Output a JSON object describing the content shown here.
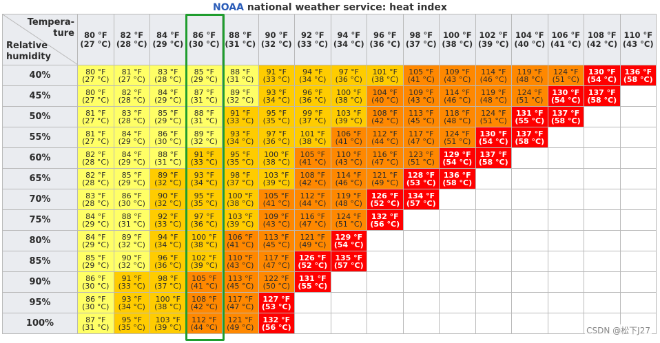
{
  "title_brand": "NOAA",
  "title_rest": " national weather service: heat index",
  "corner_top": "Tempera-\nture",
  "corner_bottom": "Relative\nhumidity",
  "watermark": "CSDN @松下J27",
  "highlight_color": "#1f9d2e",
  "colors": {
    "caution": "#ffff66",
    "extreme_caution": "#ffcc00",
    "danger": "#ff8800",
    "extreme_danger": "#ff0000"
  },
  "temperatures": [
    [
      "80 °F",
      "(27 °C)"
    ],
    [
      "82 °F",
      "(28 °C)"
    ],
    [
      "84 °F",
      "(29 °C)"
    ],
    [
      "86 °F",
      "(30 °C)"
    ],
    [
      "88 °F",
      "(31 °C)"
    ],
    [
      "90 °F",
      "(32 °C)"
    ],
    [
      "92 °F",
      "(33 °C)"
    ],
    [
      "94 °F",
      "(34 °C)"
    ],
    [
      "96 °F",
      "(36 °C)"
    ],
    [
      "98 °F",
      "(37 °C)"
    ],
    [
      "100 °F",
      "(38 °C)"
    ],
    [
      "102 °F",
      "(39 °C)"
    ],
    [
      "104 °F",
      "(40 °C)"
    ],
    [
      "106 °F",
      "(41 °C)"
    ],
    [
      "108 °F",
      "(42 °C)"
    ],
    [
      "110 °F",
      "(43 °C)"
    ]
  ],
  "rows": [
    {
      "humidity": "40%",
      "cells": [
        [
          "y",
          "80 °F",
          "(27 °C)"
        ],
        [
          "y",
          "81 °F",
          "(27 °C)"
        ],
        [
          "y",
          "83 °F",
          "(28 °C)"
        ],
        [
          "y",
          "85 °F",
          "(29 °C)"
        ],
        [
          "y",
          "88 °F",
          "(31 °C)"
        ],
        [
          "g",
          "91 °F",
          "(33 °C)"
        ],
        [
          "g",
          "94 °F",
          "(34 °C)"
        ],
        [
          "g",
          "97 °F",
          "(36 °C)"
        ],
        [
          "g",
          "101 °F",
          "(38 °C)"
        ],
        [
          "o",
          "105 °F",
          "(41 °C)"
        ],
        [
          "o",
          "109 °F",
          "(43 °C)"
        ],
        [
          "o",
          "114 °F",
          "(46 °C)"
        ],
        [
          "o",
          "119 °F",
          "(48 °C)"
        ],
        [
          "o",
          "124 °F",
          "(51 °C)"
        ],
        [
          "r",
          "130 °F",
          "(54 °C)"
        ],
        [
          "r",
          "136 °F",
          "(58 °C)"
        ]
      ]
    },
    {
      "humidity": "45%",
      "cells": [
        [
          "y",
          "80 °F",
          "(27 °C)"
        ],
        [
          "y",
          "82 °F",
          "(28 °C)"
        ],
        [
          "y",
          "84 °F",
          "(29 °C)"
        ],
        [
          "y",
          "87 °F",
          "(31 °C)"
        ],
        [
          "y",
          "89 °F",
          "(32 °C)"
        ],
        [
          "g",
          "93 °F",
          "(34 °C)"
        ],
        [
          "g",
          "96 °F",
          "(36 °C)"
        ],
        [
          "g",
          "100 °F",
          "(38 °C)"
        ],
        [
          "o",
          "104 °F",
          "(40 °C)"
        ],
        [
          "o",
          "109 °F",
          "(43 °C)"
        ],
        [
          "o",
          "114 °F",
          "(46 °C)"
        ],
        [
          "o",
          "119 °F",
          "(48 °C)"
        ],
        [
          "o",
          "124 °F",
          "(51 °C)"
        ],
        [
          "r",
          "130 °F",
          "(54 °C)"
        ],
        [
          "r",
          "137 °F",
          "(58 °C)"
        ],
        [
          "e",
          "",
          ""
        ]
      ]
    },
    {
      "humidity": "50%",
      "cells": [
        [
          "y",
          "81 °F",
          "(27 °C)"
        ],
        [
          "y",
          "83 °F",
          "(28 °C)"
        ],
        [
          "y",
          "85 °F",
          "(29 °C)"
        ],
        [
          "y",
          "88 °F",
          "(31 °C)"
        ],
        [
          "g",
          "91 °F",
          "(33 °C)"
        ],
        [
          "g",
          "95 °F",
          "(35 °C)"
        ],
        [
          "g",
          "99 °F",
          "(37 °C)"
        ],
        [
          "g",
          "103 °F",
          "(39 °C)"
        ],
        [
          "o",
          "108 °F",
          "(42 °C)"
        ],
        [
          "o",
          "113 °F",
          "(45 °C)"
        ],
        [
          "o",
          "118 °F",
          "(48 °C)"
        ],
        [
          "o",
          "124 °F",
          "(51 °C)"
        ],
        [
          "r",
          "131 °F",
          "(55 °C)"
        ],
        [
          "r",
          "137 °F",
          "(58 °C)"
        ],
        [
          "e",
          "",
          ""
        ],
        [
          "e",
          "",
          ""
        ]
      ]
    },
    {
      "humidity": "55%",
      "cells": [
        [
          "y",
          "81 °F",
          "(27 °C)"
        ],
        [
          "y",
          "84 °F",
          "(29 °C)"
        ],
        [
          "y",
          "86 °F",
          "(30 °C)"
        ],
        [
          "y",
          "89 °F",
          "(32 °C)"
        ],
        [
          "g",
          "93 °F",
          "(34 °C)"
        ],
        [
          "g",
          "97 °F",
          "(36 °C)"
        ],
        [
          "g",
          "101 °F",
          "(38 °C)"
        ],
        [
          "o",
          "106 °F",
          "(41 °C)"
        ],
        [
          "o",
          "112 °F",
          "(44 °C)"
        ],
        [
          "o",
          "117 °F",
          "(47 °C)"
        ],
        [
          "o",
          "124 °F",
          "(51 °C)"
        ],
        [
          "r",
          "130 °F",
          "(54 °C)"
        ],
        [
          "r",
          "137 °F",
          "(58 °C)"
        ],
        [
          "e",
          "",
          ""
        ],
        [
          "e",
          "",
          ""
        ],
        [
          "e",
          "",
          ""
        ]
      ]
    },
    {
      "humidity": "60%",
      "cells": [
        [
          "y",
          "82 °F",
          "(28 °C)"
        ],
        [
          "y",
          "84 °F",
          "(29 °C)"
        ],
        [
          "y",
          "88 °F",
          "(31 °C)"
        ],
        [
          "g",
          "91 °F",
          "(33 °C)"
        ],
        [
          "g",
          "95 °F",
          "(35 °C)"
        ],
        [
          "g",
          "100 °F",
          "(38 °C)"
        ],
        [
          "o",
          "105 °F",
          "(41 °C)"
        ],
        [
          "o",
          "110 °F",
          "(43 °C)"
        ],
        [
          "o",
          "116 °F",
          "(47 °C)"
        ],
        [
          "o",
          "123 °F",
          "(51 °C)"
        ],
        [
          "r",
          "129 °F",
          "(54 °C)"
        ],
        [
          "r",
          "137 °F",
          "(58 °C)"
        ],
        [
          "e",
          "",
          ""
        ],
        [
          "e",
          "",
          ""
        ],
        [
          "e",
          "",
          ""
        ],
        [
          "e",
          "",
          ""
        ]
      ]
    },
    {
      "humidity": "65%",
      "cells": [
        [
          "y",
          "82 °F",
          "(28 °C)"
        ],
        [
          "y",
          "85 °F",
          "(29 °C)"
        ],
        [
          "g",
          "89 °F",
          "(32 °C)"
        ],
        [
          "g",
          "93 °F",
          "(34 °C)"
        ],
        [
          "g",
          "98 °F",
          "(37 °C)"
        ],
        [
          "g",
          "103 °F",
          "(39 °C)"
        ],
        [
          "o",
          "108 °F",
          "(42 °C)"
        ],
        [
          "o",
          "114 °F",
          "(46 °C)"
        ],
        [
          "o",
          "121 °F",
          "(49 °C)"
        ],
        [
          "r",
          "128 °F",
          "(53 °C)"
        ],
        [
          "r",
          "136 °F",
          "(58 °C)"
        ],
        [
          "e",
          "",
          ""
        ],
        [
          "e",
          "",
          ""
        ],
        [
          "e",
          "",
          ""
        ],
        [
          "e",
          "",
          ""
        ],
        [
          "e",
          "",
          ""
        ]
      ]
    },
    {
      "humidity": "70%",
      "cells": [
        [
          "y",
          "83 °F",
          "(28 °C)"
        ],
        [
          "y",
          "86 °F",
          "(30 °C)"
        ],
        [
          "g",
          "90 °F",
          "(32 °C)"
        ],
        [
          "g",
          "95 °F",
          "(35 °C)"
        ],
        [
          "g",
          "100 °F",
          "(38 °C)"
        ],
        [
          "o",
          "105 °F",
          "(41 °C)"
        ],
        [
          "o",
          "112 °F",
          "(44 °C)"
        ],
        [
          "o",
          "119 °F",
          "(48 °C)"
        ],
        [
          "r",
          "126 °F",
          "(52 °C)"
        ],
        [
          "r",
          "134 °F",
          "(57 °C)"
        ],
        [
          "e",
          "",
          ""
        ],
        [
          "e",
          "",
          ""
        ],
        [
          "e",
          "",
          ""
        ],
        [
          "e",
          "",
          ""
        ],
        [
          "e",
          "",
          ""
        ],
        [
          "e",
          "",
          ""
        ]
      ]
    },
    {
      "humidity": "75%",
      "cells": [
        [
          "y",
          "84 °F",
          "(29 °C)"
        ],
        [
          "y",
          "88 °F",
          "(31 °C)"
        ],
        [
          "g",
          "92 °F",
          "(33 °C)"
        ],
        [
          "g",
          "97 °F",
          "(36 °C)"
        ],
        [
          "g",
          "103 °F",
          "(39 °C)"
        ],
        [
          "o",
          "109 °F",
          "(43 °C)"
        ],
        [
          "o",
          "116 °F",
          "(47 °C)"
        ],
        [
          "o",
          "124 °F",
          "(51 °C)"
        ],
        [
          "r",
          "132 °F",
          "(56 °C)"
        ],
        [
          "e",
          "",
          ""
        ],
        [
          "e",
          "",
          ""
        ],
        [
          "e",
          "",
          ""
        ],
        [
          "e",
          "",
          ""
        ],
        [
          "e",
          "",
          ""
        ],
        [
          "e",
          "",
          ""
        ],
        [
          "e",
          "",
          ""
        ]
      ]
    },
    {
      "humidity": "80%",
      "cells": [
        [
          "y",
          "84 °F",
          "(29 °C)"
        ],
        [
          "y",
          "89 °F",
          "(32 °C)"
        ],
        [
          "g",
          "94 °F",
          "(34 °C)"
        ],
        [
          "g",
          "100 °F",
          "(38 °C)"
        ],
        [
          "o",
          "106 °F",
          "(41 °C)"
        ],
        [
          "o",
          "113 °F",
          "(45 °C)"
        ],
        [
          "o",
          "121 °F",
          "(49 °C)"
        ],
        [
          "r",
          "129 °F",
          "(54 °C)"
        ],
        [
          "e",
          "",
          ""
        ],
        [
          "e",
          "",
          ""
        ],
        [
          "e",
          "",
          ""
        ],
        [
          "e",
          "",
          ""
        ],
        [
          "e",
          "",
          ""
        ],
        [
          "e",
          "",
          ""
        ],
        [
          "e",
          "",
          ""
        ],
        [
          "e",
          "",
          ""
        ]
      ]
    },
    {
      "humidity": "85%",
      "cells": [
        [
          "y",
          "85 °F",
          "(29 °C)"
        ],
        [
          "y",
          "90 °F",
          "(32 °C)"
        ],
        [
          "g",
          "96 °F",
          "(36 °C)"
        ],
        [
          "g",
          "102 °F",
          "(39 °C)"
        ],
        [
          "o",
          "110 °F",
          "(43 °C)"
        ],
        [
          "o",
          "117 °F",
          "(47 °C)"
        ],
        [
          "r",
          "126 °F",
          "(52 °C)"
        ],
        [
          "r",
          "135 °F",
          "(57 °C)"
        ],
        [
          "e",
          "",
          ""
        ],
        [
          "e",
          "",
          ""
        ],
        [
          "e",
          "",
          ""
        ],
        [
          "e",
          "",
          ""
        ],
        [
          "e",
          "",
          ""
        ],
        [
          "e",
          "",
          ""
        ],
        [
          "e",
          "",
          ""
        ],
        [
          "e",
          "",
          ""
        ]
      ]
    },
    {
      "humidity": "90%",
      "cells": [
        [
          "y",
          "86 °F",
          "(30 °C)"
        ],
        [
          "g",
          "91 °F",
          "(33 °C)"
        ],
        [
          "g",
          "98 °F",
          "(37 °C)"
        ],
        [
          "o",
          "105 °F",
          "(41 °C)"
        ],
        [
          "o",
          "113 °F",
          "(45 °C)"
        ],
        [
          "o",
          "122 °F",
          "(50 °C)"
        ],
        [
          "r",
          "131 °F",
          "(55 °C)"
        ],
        [
          "e",
          "",
          ""
        ],
        [
          "e",
          "",
          ""
        ],
        [
          "e",
          "",
          ""
        ],
        [
          "e",
          "",
          ""
        ],
        [
          "e",
          "",
          ""
        ],
        [
          "e",
          "",
          ""
        ],
        [
          "e",
          "",
          ""
        ],
        [
          "e",
          "",
          ""
        ],
        [
          "e",
          "",
          ""
        ]
      ]
    },
    {
      "humidity": "95%",
      "cells": [
        [
          "y",
          "86 °F",
          "(30 °C)"
        ],
        [
          "g",
          "93 °F",
          "(34 °C)"
        ],
        [
          "g",
          "100 °F",
          "(38 °C)"
        ],
        [
          "o",
          "108 °F",
          "(42 °C)"
        ],
        [
          "o",
          "117 °F",
          "(47 °C)"
        ],
        [
          "r",
          "127 °F",
          "(53 °C)"
        ],
        [
          "e",
          "",
          ""
        ],
        [
          "e",
          "",
          ""
        ],
        [
          "e",
          "",
          ""
        ],
        [
          "e",
          "",
          ""
        ],
        [
          "e",
          "",
          ""
        ],
        [
          "e",
          "",
          ""
        ],
        [
          "e",
          "",
          ""
        ],
        [
          "e",
          "",
          ""
        ],
        [
          "e",
          "",
          ""
        ],
        [
          "e",
          "",
          ""
        ]
      ]
    },
    {
      "humidity": "100%",
      "cells": [
        [
          "y",
          "87 °F",
          "(31 °C)"
        ],
        [
          "g",
          "95 °F",
          "(35 °C)"
        ],
        [
          "g",
          "103 °F",
          "(39 °C)"
        ],
        [
          "o",
          "112 °F",
          "(44 °C)"
        ],
        [
          "o",
          "121 °F",
          "(49 °C)"
        ],
        [
          "r",
          "132 °F",
          "(56 °C)"
        ],
        [
          "e",
          "",
          ""
        ],
        [
          "e",
          "",
          ""
        ],
        [
          "e",
          "",
          ""
        ],
        [
          "e",
          "",
          ""
        ],
        [
          "e",
          "",
          ""
        ],
        [
          "e",
          "",
          ""
        ],
        [
          "e",
          "",
          ""
        ],
        [
          "e",
          "",
          ""
        ],
        [
          "e",
          "",
          ""
        ],
        [
          "e",
          "",
          ""
        ]
      ]
    }
  ]
}
